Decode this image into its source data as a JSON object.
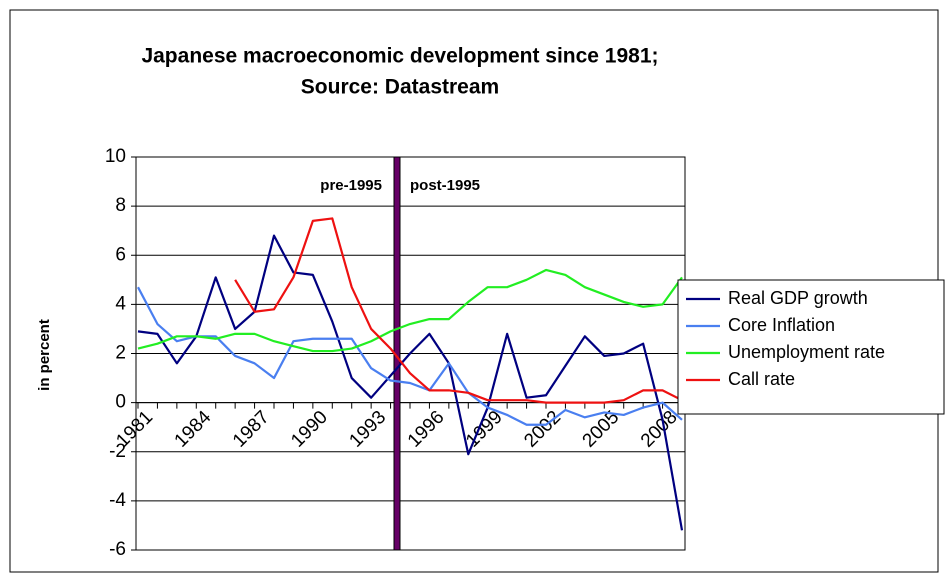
{
  "chart_data": {
    "type": "line",
    "title": "Japanese macroeconomic development since 1981;",
    "subtitle": "Source: Datastream",
    "y_label": "in percent",
    "annotations": [
      "pre-1995",
      "post-1995"
    ],
    "categories": [
      "1981",
      null,
      null,
      "1984",
      null,
      null,
      "1987",
      null,
      null,
      "1990",
      null,
      null,
      "1993",
      null,
      null,
      "1996",
      null,
      null,
      "1999",
      null,
      null,
      "2002",
      null,
      null,
      "2005",
      null,
      null,
      "2008",
      null
    ],
    "series": [
      {
        "name": "Real GDP growth",
        "color": "#000080",
        "values": [
          2.9,
          2.8,
          1.6,
          2.7,
          5.1,
          3.0,
          3.7,
          6.8,
          5.3,
          5.2,
          3.3,
          1.0,
          0.2,
          1.1,
          2.0,
          2.8,
          1.6,
          -2.1,
          -0.2,
          2.8,
          0.2,
          0.3,
          1.5,
          2.7,
          1.9,
          2.0,
          2.4,
          -0.7,
          -5.2
        ]
      },
      {
        "name": "Core Inflation",
        "color": "#4a7ff0",
        "values": [
          4.7,
          3.2,
          2.5,
          2.7,
          2.7,
          1.9,
          1.6,
          1.0,
          2.5,
          2.6,
          2.6,
          2.6,
          1.4,
          0.9,
          0.8,
          0.5,
          1.6,
          0.4,
          -0.2,
          -0.5,
          -0.9,
          -0.9,
          -0.3,
          -0.6,
          -0.4,
          -0.5,
          -0.2,
          0.0,
          -0.7
        ]
      },
      {
        "name": "Unemployment rate",
        "color": "#22ee22",
        "values": [
          2.2,
          2.4,
          2.7,
          2.7,
          2.6,
          2.8,
          2.8,
          2.5,
          2.3,
          2.1,
          2.1,
          2.2,
          2.5,
          2.9,
          3.2,
          3.4,
          3.4,
          4.1,
          4.7,
          4.7,
          5.0,
          5.4,
          5.2,
          4.7,
          4.4,
          4.1,
          3.9,
          4.0,
          5.1
        ]
      },
      {
        "name": "Call rate",
        "color": "#ee1111",
        "values": [
          null,
          null,
          null,
          null,
          null,
          5.0,
          3.7,
          3.8,
          5.1,
          7.4,
          7.5,
          4.7,
          3.0,
          2.2,
          1.2,
          0.5,
          0.5,
          0.4,
          0.1,
          0.1,
          0.1,
          0.0,
          0.0,
          0.0,
          0.0,
          0.1,
          0.5,
          0.5,
          0.1
        ]
      }
    ],
    "ylim": [
      -6,
      10
    ],
    "yticks": [
      -6,
      -4,
      -2,
      0,
      2,
      4,
      6,
      8,
      10
    ],
    "grid": true,
    "legend": "right"
  }
}
